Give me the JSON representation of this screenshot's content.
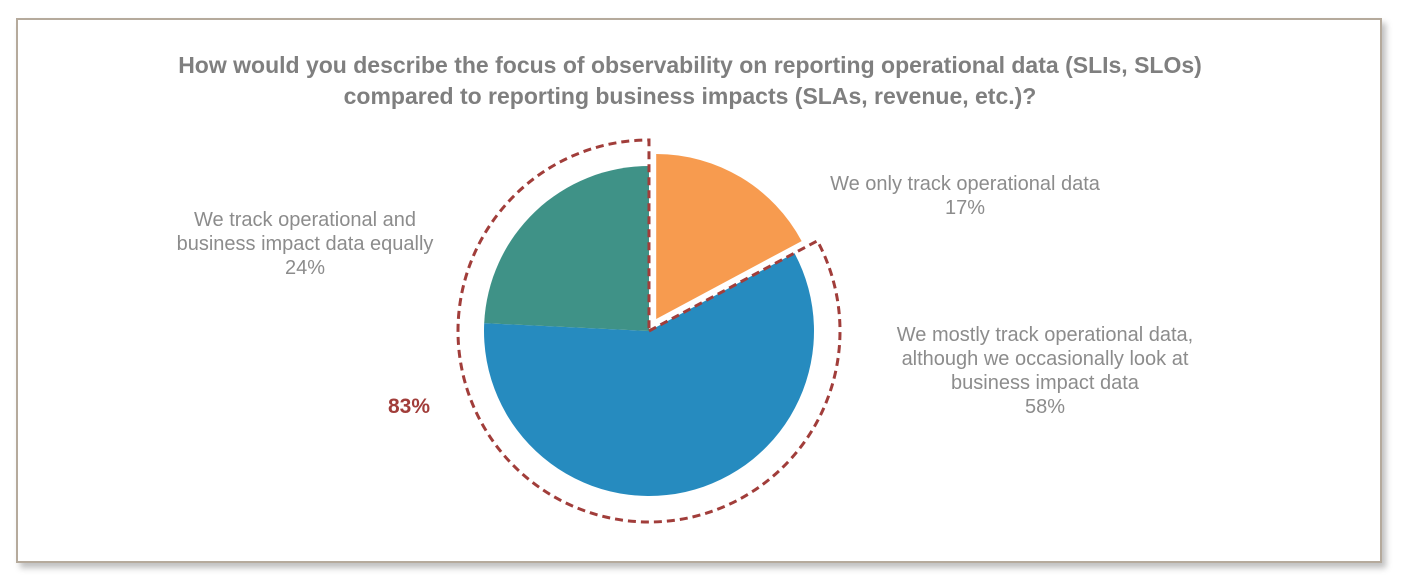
{
  "chart_data": {
    "type": "pie",
    "title": "How would you describe the focus of observability on reporting operational data (SLIs, SLOs) compared to reporting business impacts (SLAs, revenue, etc.)?",
    "title_lines": [
      "How would you describe the focus of observability on reporting operational data (SLIs, SLOs)",
      "compared to reporting business impacts (SLAs, revenue, etc.)?"
    ],
    "slices": [
      {
        "label_lines": [
          "We only track operational data"
        ],
        "value": 17,
        "value_label": "17%",
        "color": "#f79b4f",
        "exploded": true
      },
      {
        "label_lines": [
          "We mostly track operational data,",
          "although we occasionally look at",
          "business impact data"
        ],
        "value": 58,
        "value_label": "58%",
        "color": "#268bbf"
      },
      {
        "label_lines": [
          "We track operational and",
          "business impact data equally"
        ],
        "value": 24,
        "value_label": "24%",
        "color": "#3f9287"
      }
    ],
    "annotation": {
      "text": "83%",
      "color": "#a13d3a",
      "covers": "slices 2-3 (dashed outline)"
    }
  }
}
